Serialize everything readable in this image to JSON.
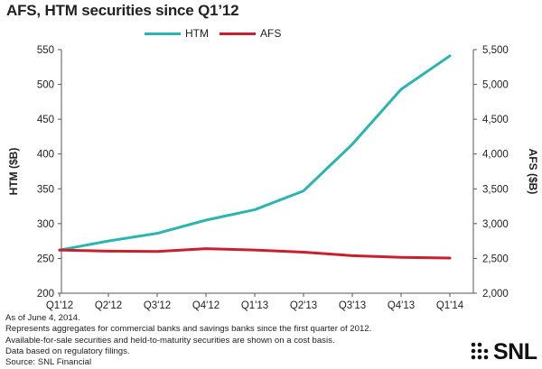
{
  "chart_data": {
    "type": "line",
    "title": "AFS, HTM securities since Q1’12",
    "categories": [
      "Q1'12",
      "Q2'12",
      "Q3'12",
      "Q4'12",
      "Q1'13",
      "Q2'13",
      "Q3'13",
      "Q4'13",
      "Q1'14"
    ],
    "series": [
      {
        "name": "HTM",
        "axis": "left",
        "color": "#2bb5b0",
        "values": [
          262,
          275,
          286,
          305,
          320,
          347,
          414,
          493,
          541
        ]
      },
      {
        "name": "AFS",
        "axis": "right",
        "color": "#c8202f",
        "values": [
          2620,
          2605,
          2600,
          2640,
          2620,
          2590,
          2540,
          2515,
          2505
        ]
      }
    ],
    "ylabel_left": "HTM ($B)",
    "ylabel_right": "AFS ($B)",
    "ylim_left": [
      200,
      550
    ],
    "ylim_right": [
      2000,
      5500
    ],
    "yticks_left": [
      "200",
      "250",
      "300",
      "350",
      "400",
      "450",
      "500",
      "550"
    ],
    "yticks_right": [
      "2,000",
      "2,500",
      "3,000",
      "3,500",
      "4,000",
      "4,500",
      "5,000",
      "5,500"
    ],
    "grid": false,
    "legend_placement": "top-center"
  },
  "notes": [
    "As of June 4, 2014.",
    "Represents aggregates for commercial banks and savings banks since the first quarter of 2012.",
    "Available-for-sale securities and held-to-maturity securities are shown on a cost basis.",
    "Data based on regulatory filings.",
    "Source: SNL Financial"
  ],
  "logo": {
    "text": "SNL"
  }
}
